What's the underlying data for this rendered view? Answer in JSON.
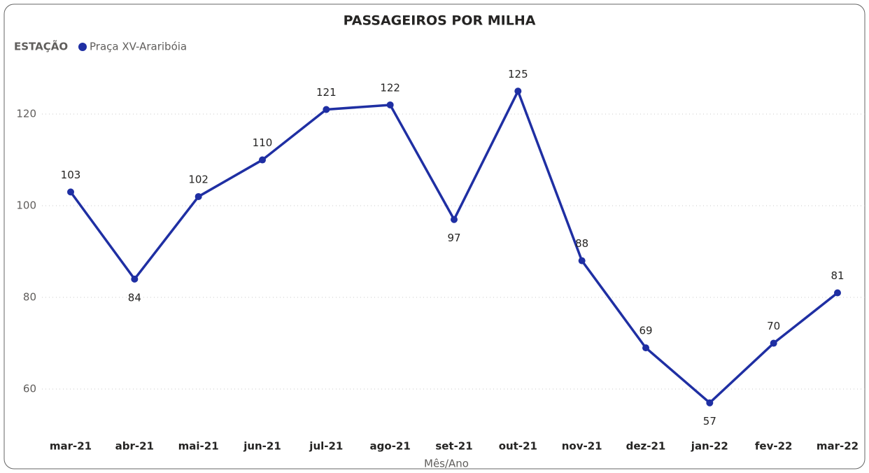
{
  "chart_data": {
    "type": "line",
    "title": "PASSAGEIROS POR MILHA",
    "legend_title": "ESTAÇÃO",
    "x_label": "Mês/Ano",
    "categories": [
      "mar-21",
      "abr-21",
      "mai-21",
      "jun-21",
      "jul-21",
      "ago-21",
      "set-21",
      "out-21",
      "nov-21",
      "dez-21",
      "jan-22",
      "fev-22",
      "mar-22"
    ],
    "series": [
      {
        "name": "Praça XV-Araribóia",
        "color": "#1f2fa3",
        "values": [
          103,
          84,
          102,
          110,
          121,
          122,
          97,
          125,
          88,
          69,
          57,
          70,
          81
        ]
      }
    ],
    "ylim": [
      51,
      131
    ],
    "yticks": [
      60,
      80,
      100,
      120
    ],
    "grid": true
  }
}
